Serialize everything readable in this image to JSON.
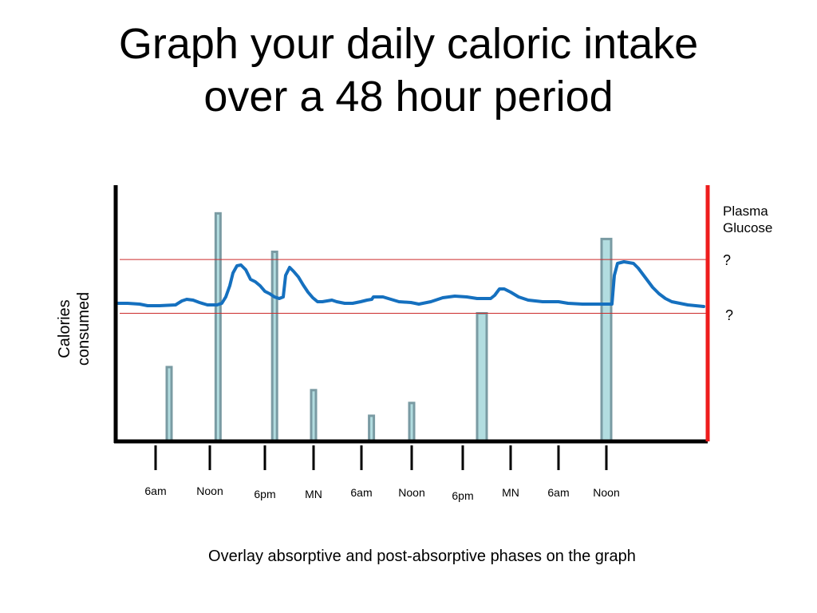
{
  "slide": {
    "title_line1": "Graph your daily caloric intake",
    "title_line2": "over a 48 hour period",
    "instruction": "Overlay absorptive and post-absorptive phases on the graph"
  },
  "chart_data": {
    "type": "bar",
    "ylabel_line1": "Calories",
    "ylabel_line2": "consumed",
    "right_axis_label_line1": "Plasma",
    "right_axis_label_line2": "Glucose",
    "upper_marker": "?",
    "lower_marker": "?",
    "x_ticks": [
      "6am",
      "Noon",
      "6pm",
      "MN",
      "6am",
      "Noon",
      "6pm",
      "MN",
      "6am",
      "Noon"
    ],
    "bars": [
      {
        "center": 0.25,
        "width": 0.1,
        "value": 29
      },
      {
        "center": 1.15,
        "width": 0.1,
        "value": 89
      },
      {
        "center": 2.2,
        "width": 0.1,
        "value": 74
      },
      {
        "center": 3.0,
        "width": 0.1,
        "value": 20
      },
      {
        "center": 4.2,
        "width": 0.1,
        "value": 10
      },
      {
        "center": 5.0,
        "width": 0.1,
        "value": 15
      },
      {
        "center": 6.4,
        "width": 0.2,
        "value": 50
      },
      {
        "center": 9.0,
        "width": 0.2,
        "value": 79
      }
    ],
    "y_range": [
      0,
      100
    ],
    "plasma_glucose_levels": {
      "upper": 71,
      "lower": 50
    },
    "colors": {
      "axis": "#000000",
      "right_axis": "#ee1c1c",
      "threshold": "#cc2b2b",
      "bar_fill": "#b2dde0",
      "bar_stroke": "#7a9ba3",
      "glucose_line": "#1570bf"
    }
  }
}
